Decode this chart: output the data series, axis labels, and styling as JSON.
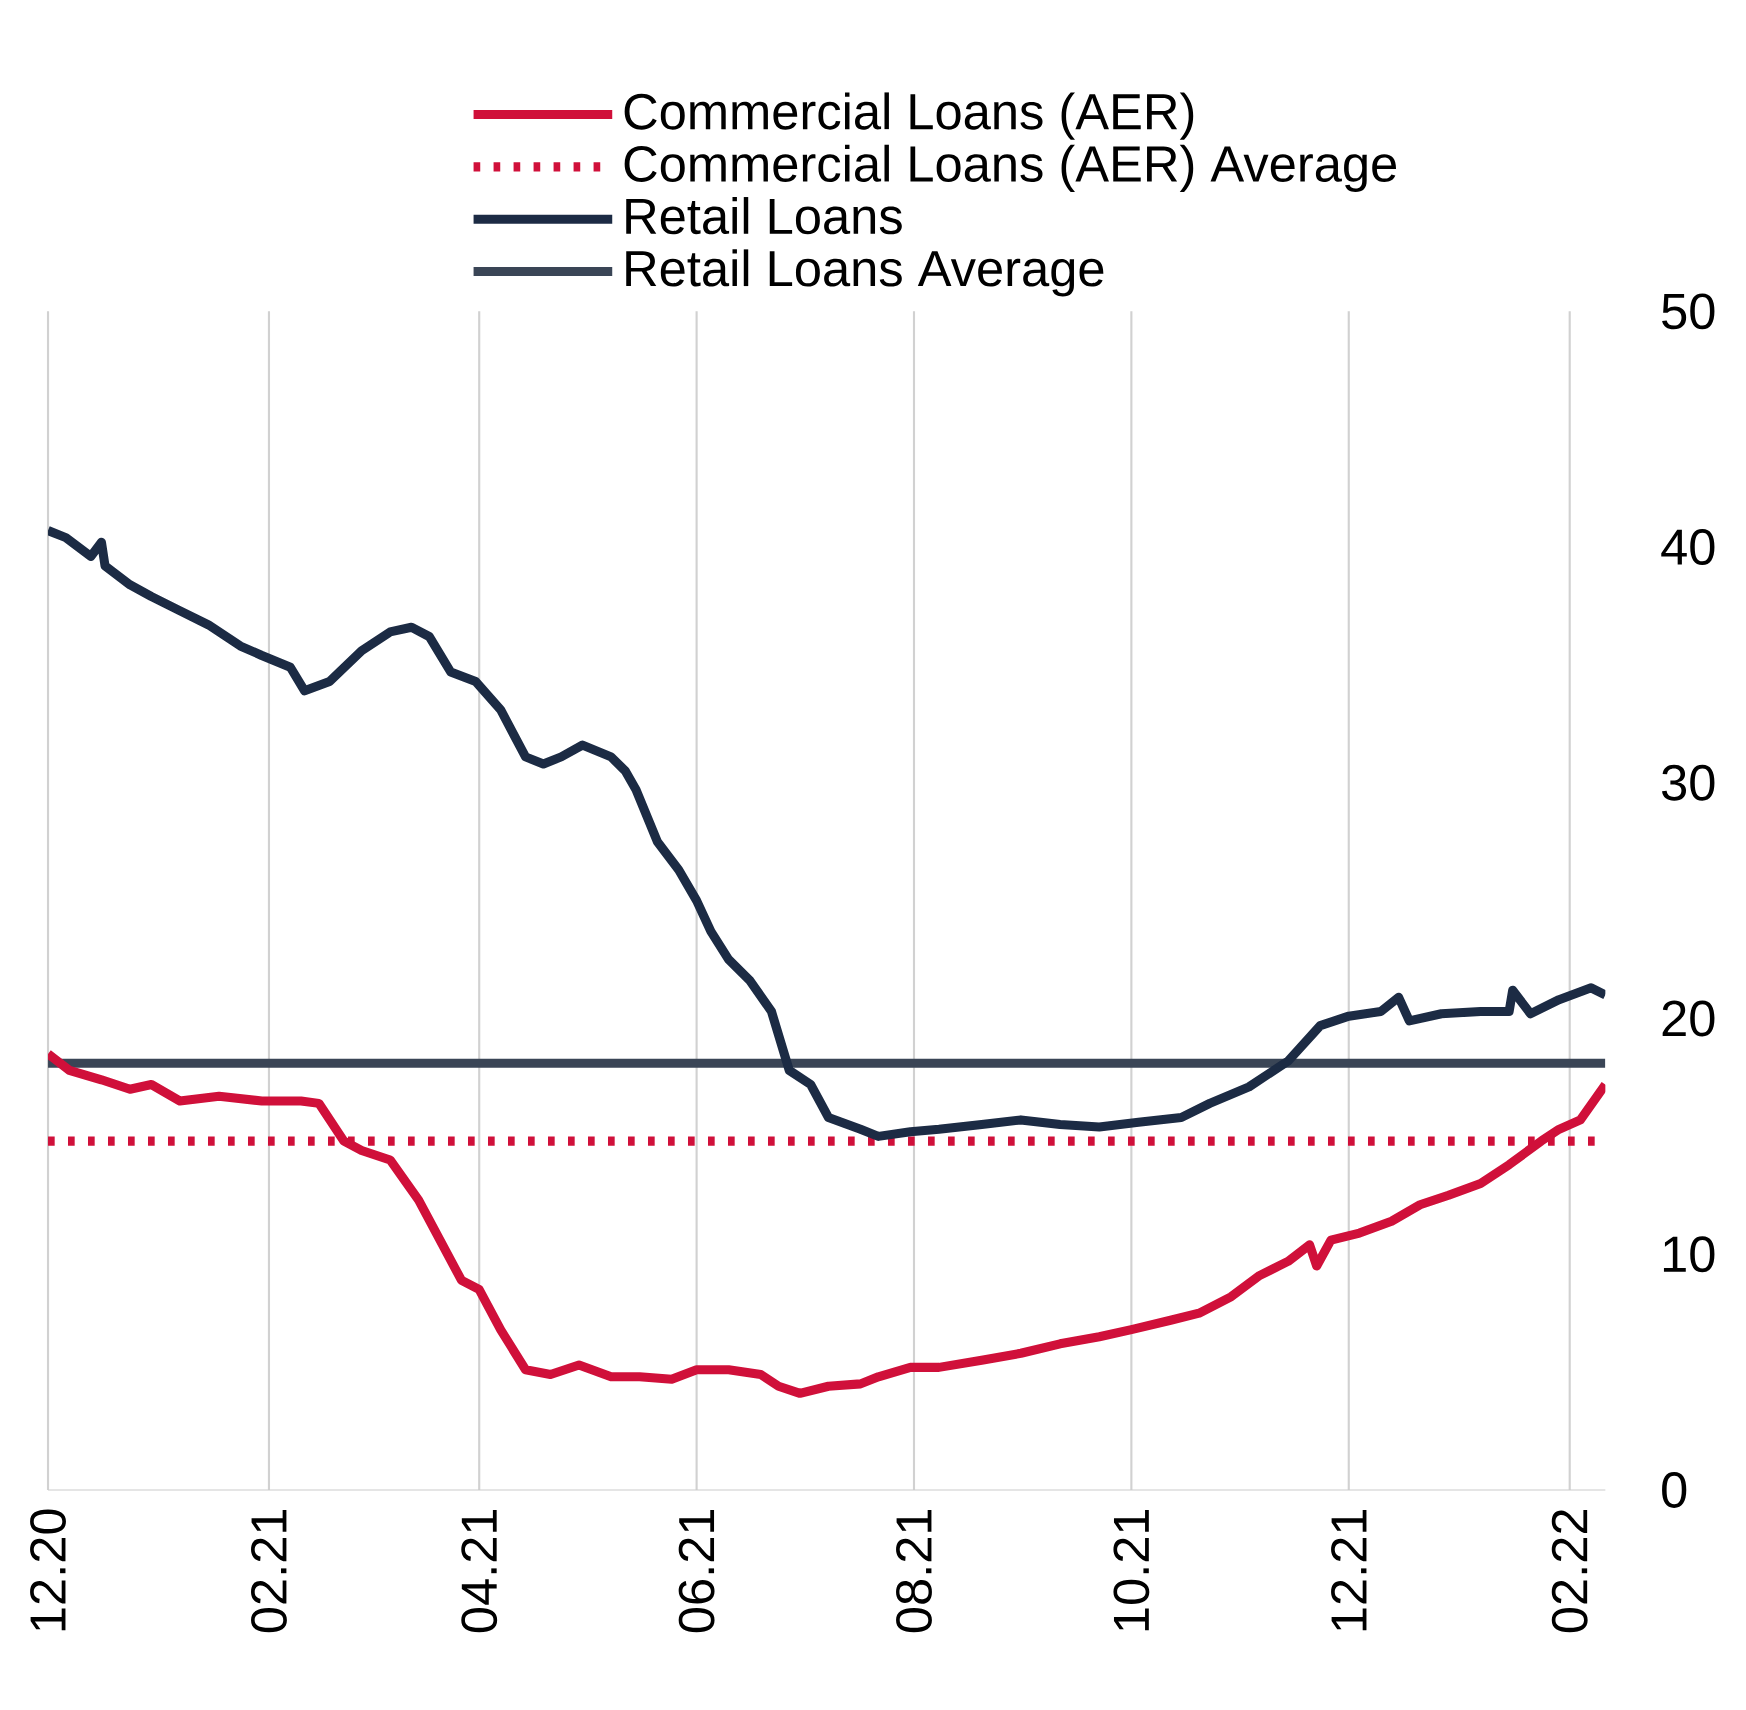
{
  "chart_data": {
    "type": "line",
    "legend": "top",
    "grid": "x",
    "line_style": "solid",
    "marker": "none",
    "xlim": [
      "2020-12-01",
      "2022-02-11"
    ],
    "xticks": [
      {
        "value": "2020-12-01",
        "label": "12.20"
      },
      {
        "value": "2021-02-01",
        "label": "02.21"
      },
      {
        "value": "2021-04-01",
        "label": "04.21"
      },
      {
        "value": "2021-06-01",
        "label": "06.21"
      },
      {
        "value": "2021-08-01",
        "label": "08.21"
      },
      {
        "value": "2021-10-01",
        "label": "10.21"
      },
      {
        "value": "2021-12-01",
        "label": "12.21"
      },
      {
        "value": "2022-02-01",
        "label": "02.22"
      }
    ],
    "ylim": [
      0,
      50
    ],
    "yticks": [
      0,
      10,
      20,
      30,
      40,
      50
    ],
    "series": [
      {
        "name": "Commercial Loans (AER)",
        "color": "#d0103a",
        "x": [
          "2020-12-01",
          "2020-12-07",
          "2020-12-16",
          "2020-12-24",
          "2020-12-30",
          "2021-01-07",
          "2021-01-18",
          "2021-01-30",
          "2021-02-10",
          "2021-02-15",
          "2021-02-22",
          "2021-02-27",
          "2021-03-07",
          "2021-03-15",
          "2021-03-21",
          "2021-03-27",
          "2021-04-01",
          "2021-04-07",
          "2021-04-14",
          "2021-04-21",
          "2021-04-29",
          "2021-05-08",
          "2021-05-16",
          "2021-05-25",
          "2021-06-01",
          "2021-06-10",
          "2021-06-19",
          "2021-06-24",
          "2021-06-30",
          "2021-07-08",
          "2021-07-17",
          "2021-07-22",
          "2021-07-31",
          "2021-08-08",
          "2021-08-20",
          "2021-08-31",
          "2021-09-11",
          "2021-09-22",
          "2021-10-01",
          "2021-10-12",
          "2021-10-20",
          "2021-10-29",
          "2021-11-06",
          "2021-11-14",
          "2021-11-20",
          "2021-11-22",
          "2021-11-26",
          "2021-12-04",
          "2021-12-13",
          "2021-12-21",
          "2021-12-29",
          "2022-01-07",
          "2022-01-15",
          "2022-01-24",
          "2022-01-29",
          "2022-02-04",
          "2022-02-11"
        ],
        "values": [
          18.5,
          17.8,
          17.4,
          17.0,
          17.2,
          16.5,
          16.7,
          16.5,
          16.5,
          16.4,
          14.8,
          14.4,
          14.0,
          12.3,
          10.6,
          8.9,
          8.5,
          6.8,
          5.1,
          4.9,
          5.3,
          4.8,
          4.8,
          4.7,
          5.1,
          5.1,
          4.9,
          4.4,
          4.1,
          4.4,
          4.5,
          4.8,
          5.2,
          5.2,
          5.5,
          5.8,
          6.2,
          6.5,
          6.8,
          7.2,
          7.5,
          8.2,
          9.1,
          9.7,
          10.4,
          9.5,
          10.6,
          10.9,
          11.4,
          12.1,
          12.5,
          13.0,
          13.8,
          14.8,
          15.3,
          15.7,
          17.2
        ]
      },
      {
        "name": "Retail Loans",
        "color": "#1c2b44",
        "x": [
          "2020-12-01",
          "2020-12-06",
          "2020-12-13",
          "2020-12-16",
          "2020-12-17",
          "2020-12-24",
          "2020-12-30",
          "2021-01-07",
          "2021-01-15",
          "2021-01-24",
          "2021-01-30",
          "2021-02-07",
          "2021-02-11",
          "2021-02-18",
          "2021-02-27",
          "2021-03-07",
          "2021-03-13",
          "2021-03-18",
          "2021-03-24",
          "2021-03-31",
          "2021-04-07",
          "2021-04-14",
          "2021-04-19",
          "2021-04-24",
          "2021-04-30",
          "2021-05-08",
          "2021-05-12",
          "2021-05-15",
          "2021-05-21",
          "2021-05-27",
          "2021-06-01",
          "2021-06-05",
          "2021-06-10",
          "2021-06-16",
          "2021-06-22",
          "2021-06-27",
          "2021-07-03",
          "2021-07-08",
          "2021-07-17",
          "2021-07-22",
          "2021-07-31",
          "2021-08-08",
          "2021-08-20",
          "2021-08-31",
          "2021-09-11",
          "2021-09-22",
          "2021-10-03",
          "2021-10-15",
          "2021-10-23",
          "2021-11-03",
          "2021-11-14",
          "2021-11-23",
          "2021-12-01",
          "2021-12-10",
          "2021-12-15",
          "2021-12-18",
          "2021-12-27",
          "2022-01-07",
          "2022-01-15",
          "2022-01-16",
          "2022-01-21",
          "2022-01-29",
          "2022-02-07",
          "2022-02-11"
        ],
        "values": [
          40.7,
          40.4,
          39.6,
          40.2,
          39.2,
          38.4,
          37.9,
          37.3,
          36.7,
          35.8,
          35.4,
          34.9,
          33.9,
          34.3,
          35.6,
          36.4,
          36.6,
          36.2,
          34.7,
          34.3,
          33.1,
          31.1,
          30.8,
          31.1,
          31.6,
          31.1,
          30.5,
          29.7,
          27.5,
          26.3,
          25.0,
          23.7,
          22.5,
          21.6,
          20.3,
          17.8,
          17.2,
          15.8,
          15.3,
          15.0,
          15.2,
          15.3,
          15.5,
          15.7,
          15.5,
          15.4,
          15.6,
          15.8,
          16.4,
          17.1,
          18.2,
          19.7,
          20.1,
          20.3,
          20.9,
          19.9,
          20.2,
          20.3,
          20.3,
          21.2,
          20.2,
          20.8,
          21.3,
          21.0
        ]
      }
    ],
    "ref_lines": [
      {
        "axis": "y",
        "value": 14.8,
        "label": "Commercial Loans (AER) Average",
        "color": "#d0103a",
        "line_style": "dotted"
      },
      {
        "axis": "y",
        "value": 18.1,
        "label": "Retail Loans Average",
        "color": "#3a4556",
        "line_style": "solid"
      }
    ]
  }
}
